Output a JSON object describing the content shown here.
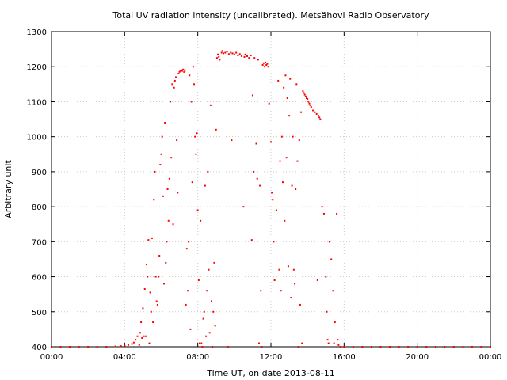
{
  "chart_data": {
    "type": "scatter",
    "title": "Total UV radiation intensity (uncalibrated). Metsähovi Radio Observatory",
    "xlabel": "Time UT, on date 2013-08-11",
    "ylabel": "Arbitrary unit",
    "x_unit": "hours UT",
    "xlim": [
      0,
      24
    ],
    "ylim": [
      400,
      1300
    ],
    "xtick_values": [
      0,
      4,
      8,
      12,
      16,
      20,
      24
    ],
    "xtick_labels": [
      "00:00",
      "04:00",
      "08:00",
      "12:00",
      "16:00",
      "20:00",
      "00:00"
    ],
    "ytick_values": [
      400,
      500,
      600,
      700,
      800,
      900,
      1000,
      1100,
      1200,
      1300
    ],
    "ytick_labels": [
      "400",
      "500",
      "600",
      "700",
      "800",
      "900",
      "1000",
      "1100",
      "1200",
      "1300"
    ],
    "grid": true,
    "marker_color": "#ff0000",
    "series": [
      {
        "points": [
          [
            0.0,
            400
          ],
          [
            0.5,
            400
          ],
          [
            1.0,
            400
          ],
          [
            1.5,
            400
          ],
          [
            2.0,
            400
          ],
          [
            2.5,
            400
          ],
          [
            3.0,
            400
          ],
          [
            3.5,
            401
          ],
          [
            3.8,
            402
          ],
          [
            4.0,
            403
          ],
          [
            4.2,
            405
          ],
          [
            4.4,
            408
          ],
          [
            4.5,
            412
          ],
          [
            4.6,
            420
          ],
          [
            4.7,
            430
          ],
          [
            4.8,
            405
          ],
          [
            4.85,
            440
          ],
          [
            4.9,
            470
          ],
          [
            4.95,
            425
          ],
          [
            5.0,
            510
          ],
          [
            5.05,
            430
          ],
          [
            5.1,
            565
          ],
          [
            5.15,
            430
          ],
          [
            5.2,
            635
          ],
          [
            5.25,
            600
          ],
          [
            5.3,
            705
          ],
          [
            5.35,
            410
          ],
          [
            5.4,
            555
          ],
          [
            5.45,
            500
          ],
          [
            5.5,
            710
          ],
          [
            5.55,
            470
          ],
          [
            5.6,
            820
          ],
          [
            5.65,
            900
          ],
          [
            5.7,
            600
          ],
          [
            5.75,
            530
          ],
          [
            5.8,
            520
          ],
          [
            5.85,
            600
          ],
          [
            5.9,
            660
          ],
          [
            5.95,
            920
          ],
          [
            6.0,
            950
          ],
          [
            6.05,
            1000
          ],
          [
            6.1,
            830
          ],
          [
            6.15,
            580
          ],
          [
            6.2,
            1040
          ],
          [
            6.25,
            640
          ],
          [
            6.3,
            700
          ],
          [
            6.35,
            850
          ],
          [
            6.4,
            760
          ],
          [
            6.45,
            880
          ],
          [
            6.5,
            1100
          ],
          [
            6.55,
            940
          ],
          [
            6.6,
            1150
          ],
          [
            6.65,
            750
          ],
          [
            6.7,
            1140
          ],
          [
            6.75,
            1160
          ],
          [
            6.8,
            1170
          ],
          [
            6.85,
            990
          ],
          [
            6.9,
            840
          ],
          [
            6.95,
            1180
          ],
          [
            7.0,
            1185
          ],
          [
            7.05,
            1188
          ],
          [
            7.1,
            1190
          ],
          [
            7.15,
            1188
          ],
          [
            7.2,
            1192
          ],
          [
            7.25,
            1185
          ],
          [
            7.3,
            1190
          ],
          [
            7.35,
            520
          ],
          [
            7.4,
            680
          ],
          [
            7.45,
            560
          ],
          [
            7.5,
            700
          ],
          [
            7.55,
            1175
          ],
          [
            7.6,
            450
          ],
          [
            7.65,
            1100
          ],
          [
            7.7,
            870
          ],
          [
            7.75,
            1200
          ],
          [
            7.8,
            1150
          ],
          [
            7.85,
            1000
          ],
          [
            7.9,
            950
          ],
          [
            7.95,
            1010
          ],
          [
            8.0,
            790
          ],
          [
            8.05,
            590
          ],
          [
            8.1,
            410
          ],
          [
            8.15,
            760
          ],
          [
            8.2,
            410
          ],
          [
            8.25,
            400
          ],
          [
            8.3,
            480
          ],
          [
            8.35,
            500
          ],
          [
            8.4,
            860
          ],
          [
            8.45,
            430
          ],
          [
            8.5,
            560
          ],
          [
            8.55,
            900
          ],
          [
            8.6,
            620
          ],
          [
            8.65,
            440
          ],
          [
            8.7,
            1090
          ],
          [
            8.75,
            530
          ],
          [
            8.8,
            400
          ],
          [
            8.85,
            500
          ],
          [
            8.9,
            640
          ],
          [
            8.95,
            460
          ],
          [
            9.0,
            1020
          ],
          [
            9.05,
            1225
          ],
          [
            9.1,
            1235
          ],
          [
            9.15,
            1228
          ],
          [
            9.2,
            1220
          ],
          [
            9.3,
            1240
          ],
          [
            9.35,
            1245
          ],
          [
            9.4,
            1238
          ],
          [
            9.5,
            1240
          ],
          [
            9.6,
            1243
          ],
          [
            9.65,
            400
          ],
          [
            9.7,
            1236
          ],
          [
            9.8,
            1240
          ],
          [
            9.85,
            990
          ],
          [
            9.9,
            1238
          ],
          [
            10.0,
            1235
          ],
          [
            10.1,
            1240
          ],
          [
            10.2,
            1232
          ],
          [
            10.3,
            1236
          ],
          [
            10.4,
            1230
          ],
          [
            10.5,
            800
          ],
          [
            10.55,
            1228
          ],
          [
            10.6,
            1235
          ],
          [
            10.7,
            1230
          ],
          [
            10.8,
            1225
          ],
          [
            10.9,
            1232
          ],
          [
            10.95,
            705
          ],
          [
            11.0,
            1118
          ],
          [
            11.05,
            900
          ],
          [
            11.1,
            1225
          ],
          [
            11.2,
            980
          ],
          [
            11.25,
            880
          ],
          [
            11.3,
            1220
          ],
          [
            11.35,
            410
          ],
          [
            11.4,
            860
          ],
          [
            11.45,
            560
          ],
          [
            11.5,
            400
          ],
          [
            11.55,
            1205
          ],
          [
            11.6,
            1210
          ],
          [
            11.65,
            1200
          ],
          [
            11.7,
            1212
          ],
          [
            11.75,
            1205
          ],
          [
            11.8,
            1208
          ],
          [
            11.85,
            1200
          ],
          [
            11.9,
            1095
          ],
          [
            12.0,
            985
          ],
          [
            12.05,
            840
          ],
          [
            12.1,
            820
          ],
          [
            12.15,
            700
          ],
          [
            12.2,
            590
          ],
          [
            12.3,
            790
          ],
          [
            12.4,
            1160
          ],
          [
            12.45,
            620
          ],
          [
            12.5,
            930
          ],
          [
            12.55,
            560
          ],
          [
            12.6,
            1000
          ],
          [
            12.65,
            870
          ],
          [
            12.7,
            1140
          ],
          [
            12.75,
            760
          ],
          [
            12.8,
            1175
          ],
          [
            12.85,
            940
          ],
          [
            12.9,
            1110
          ],
          [
            12.95,
            630
          ],
          [
            13.0,
            1060
          ],
          [
            13.05,
            1165
          ],
          [
            13.1,
            540
          ],
          [
            13.15,
            860
          ],
          [
            13.2,
            1000
          ],
          [
            13.25,
            620
          ],
          [
            13.3,
            580
          ],
          [
            13.35,
            850
          ],
          [
            13.4,
            1150
          ],
          [
            13.45,
            930
          ],
          [
            13.5,
            400
          ],
          [
            13.55,
            990
          ],
          [
            13.6,
            520
          ],
          [
            13.65,
            1070
          ],
          [
            13.7,
            410
          ],
          [
            13.75,
            1130
          ],
          [
            13.8,
            1125
          ],
          [
            13.85,
            1120
          ],
          [
            13.9,
            1115
          ],
          [
            13.95,
            1110
          ],
          [
            14.0,
            1108
          ],
          [
            14.05,
            1100
          ],
          [
            14.1,
            1095
          ],
          [
            14.15,
            1090
          ],
          [
            14.2,
            1085
          ],
          [
            14.3,
            1075
          ],
          [
            14.4,
            1070
          ],
          [
            14.5,
            1065
          ],
          [
            14.55,
            590
          ],
          [
            14.6,
            1060
          ],
          [
            14.65,
            1055
          ],
          [
            14.7,
            1050
          ],
          [
            14.8,
            800
          ],
          [
            14.9,
            780
          ],
          [
            15.0,
            600
          ],
          [
            15.05,
            500
          ],
          [
            15.1,
            420
          ],
          [
            15.15,
            410
          ],
          [
            15.2,
            700
          ],
          [
            15.3,
            650
          ],
          [
            15.4,
            560
          ],
          [
            15.45,
            410
          ],
          [
            15.5,
            470
          ],
          [
            15.6,
            780
          ],
          [
            15.65,
            420
          ],
          [
            15.7,
            405
          ],
          [
            15.8,
            400
          ],
          [
            16.0,
            400
          ],
          [
            16.5,
            400
          ],
          [
            17.0,
            400
          ],
          [
            17.5,
            400
          ],
          [
            18.0,
            400
          ],
          [
            18.5,
            400
          ],
          [
            19.0,
            400
          ],
          [
            19.5,
            400
          ],
          [
            20.0,
            400
          ],
          [
            20.5,
            400
          ],
          [
            21.0,
            400
          ],
          [
            21.5,
            400
          ],
          [
            22.0,
            400
          ],
          [
            22.5,
            400
          ],
          [
            23.0,
            400
          ],
          [
            23.5,
            400
          ],
          [
            24.0,
            400
          ]
        ]
      }
    ]
  }
}
